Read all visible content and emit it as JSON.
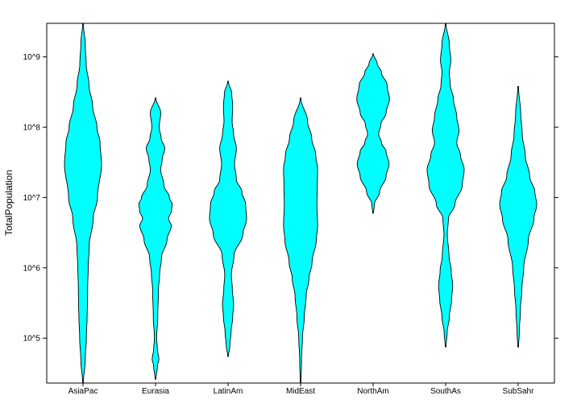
{
  "chart_data": {
    "type": "violin",
    "ylabel": "TotalPopulation",
    "yscale": "log10",
    "ylim": [
      23000.0,
      3000000000.0
    ],
    "yticks": [
      {
        "value": 100000.0,
        "label": "10^5"
      },
      {
        "value": 1000000.0,
        "label": "10^6"
      },
      {
        "value": 10000000.0,
        "label": "10^7"
      },
      {
        "value": 100000000.0,
        "label": "10^8"
      },
      {
        "value": 1000000000.0,
        "label": "10^9"
      }
    ],
    "categories": [
      "AsiaPac",
      "Eurasia",
      "LatinAm",
      "MidEast",
      "NorthAm",
      "SouthAs",
      "SubSahr"
    ],
    "colors": {
      "fill": "#00ffff",
      "stroke": "#000000"
    },
    "series": [
      {
        "category": "AsiaPac",
        "min": 23000.0,
        "max": 3000000000.0,
        "density": [
          [
            23000.0,
            0.02
          ],
          [
            50000.0,
            0.12
          ],
          [
            100000.0,
            0.18
          ],
          [
            200000.0,
            0.22
          ],
          [
            300000.0,
            0.24
          ],
          [
            500000.0,
            0.25
          ],
          [
            1000000.0,
            0.28
          ],
          [
            2000000.0,
            0.33
          ],
          [
            5000000.0,
            0.55
          ],
          [
            10000000.0,
            0.78
          ],
          [
            30000000.0,
            1.0
          ],
          [
            60000000.0,
            0.92
          ],
          [
            100000000.0,
            0.75
          ],
          [
            200000000.0,
            0.52
          ],
          [
            400000000.0,
            0.32
          ],
          [
            800000000.0,
            0.17
          ],
          [
            1500000000.0,
            0.12
          ],
          [
            3000000000.0,
            0.02
          ]
        ]
      },
      {
        "category": "Eurasia",
        "min": 26000.0,
        "max": 260000000.0,
        "density": [
          [
            26000.0,
            0.02
          ],
          [
            40000.0,
            0.1
          ],
          [
            50000.0,
            0.18
          ],
          [
            70000.0,
            0.1
          ],
          [
            100000.0,
            0.06
          ],
          [
            200000.0,
            0.12
          ],
          [
            500000.0,
            0.16
          ],
          [
            800000.0,
            0.22
          ],
          [
            1400000.0,
            0.32
          ],
          [
            2500000.0,
            0.62
          ],
          [
            4000000.0,
            0.85
          ],
          [
            5000000.0,
            0.7
          ],
          [
            6500000.0,
            0.86
          ],
          [
            8000000.0,
            0.9
          ],
          [
            10000000.0,
            0.75
          ],
          [
            15000000.0,
            0.45
          ],
          [
            25000000.0,
            0.28
          ],
          [
            35000000.0,
            0.36
          ],
          [
            50000000.0,
            0.5
          ],
          [
            70000000.0,
            0.3
          ],
          [
            100000000.0,
            0.2
          ],
          [
            160000000.0,
            0.28
          ],
          [
            260000000.0,
            0.02
          ]
        ]
      },
      {
        "category": "LatinAm",
        "min": 55000.0,
        "max": 450000000.0,
        "density": [
          [
            55000.0,
            0.02
          ],
          [
            80000.0,
            0.1
          ],
          [
            120000.0,
            0.16
          ],
          [
            200000.0,
            0.25
          ],
          [
            300000.0,
            0.3
          ],
          [
            500000.0,
            0.23
          ],
          [
            800000.0,
            0.18
          ],
          [
            1500000.0,
            0.32
          ],
          [
            3000000.0,
            0.8
          ],
          [
            5000000.0,
            1.0
          ],
          [
            8000000.0,
            0.95
          ],
          [
            12000000.0,
            0.75
          ],
          [
            18000000.0,
            0.45
          ],
          [
            30000000.0,
            0.35
          ],
          [
            50000000.0,
            0.45
          ],
          [
            80000000.0,
            0.3
          ],
          [
            120000000.0,
            0.22
          ],
          [
            200000000.0,
            0.25
          ],
          [
            300000000.0,
            0.2
          ],
          [
            450000000.0,
            0.02
          ]
        ]
      },
      {
        "category": "MidEast",
        "min": 23000.0,
        "max": 260000000.0,
        "density": [
          [
            23000.0,
            0.02
          ],
          [
            50000.0,
            0.05
          ],
          [
            100000.0,
            0.1
          ],
          [
            200000.0,
            0.2
          ],
          [
            400000.0,
            0.3
          ],
          [
            700000.0,
            0.45
          ],
          [
            1200000.0,
            0.62
          ],
          [
            2500000.0,
            0.85
          ],
          [
            4000000.0,
            0.92
          ],
          [
            8000000.0,
            0.88
          ],
          [
            15000000.0,
            0.9
          ],
          [
            25000000.0,
            0.92
          ],
          [
            40000000.0,
            0.82
          ],
          [
            70000000.0,
            0.6
          ],
          [
            120000000.0,
            0.38
          ],
          [
            260000000.0,
            0.02
          ]
        ]
      },
      {
        "category": "NorthAm",
        "min": 6000000.0,
        "max": 1100000000.0,
        "density": [
          [
            6000000.0,
            0.02
          ],
          [
            8000000.0,
            0.07
          ],
          [
            12000000.0,
            0.35
          ],
          [
            20000000.0,
            0.7
          ],
          [
            30000000.0,
            0.86
          ],
          [
            45000000.0,
            0.7
          ],
          [
            60000000.0,
            0.45
          ],
          [
            80000000.0,
            0.3
          ],
          [
            110000000.0,
            0.42
          ],
          [
            160000000.0,
            0.7
          ],
          [
            250000000.0,
            0.88
          ],
          [
            400000000.0,
            0.75
          ],
          [
            600000000.0,
            0.45
          ],
          [
            800000000.0,
            0.22
          ],
          [
            1100000000.0,
            0.02
          ]
        ]
      },
      {
        "category": "SouthAs",
        "min": 75000.0,
        "max": 3000000000.0,
        "density": [
          [
            75000.0,
            0.02
          ],
          [
            120000.0,
            0.08
          ],
          [
            200000.0,
            0.2
          ],
          [
            350000.0,
            0.32
          ],
          [
            550000.0,
            0.38
          ],
          [
            900000.0,
            0.3
          ],
          [
            1500000.0,
            0.18
          ],
          [
            3000000.0,
            0.09
          ],
          [
            5000000.0,
            0.15
          ],
          [
            8000000.0,
            0.5
          ],
          [
            15000000.0,
            0.9
          ],
          [
            25000000.0,
            1.0
          ],
          [
            40000000.0,
            0.8
          ],
          [
            60000000.0,
            0.6
          ],
          [
            90000000.0,
            0.72
          ],
          [
            140000000.0,
            0.6
          ],
          [
            250000000.0,
            0.42
          ],
          [
            400000000.0,
            0.25
          ],
          [
            600000000.0,
            0.2
          ],
          [
            900000000.0,
            0.28
          ],
          [
            1500000000.0,
            0.2
          ],
          [
            3000000000.0,
            0.02
          ]
        ]
      },
      {
        "category": "SubSahr",
        "min": 75000.0,
        "max": 380000000.0,
        "density": [
          [
            75000.0,
            0.02
          ],
          [
            120000.0,
            0.06
          ],
          [
            250000.0,
            0.12
          ],
          [
            500000.0,
            0.2
          ],
          [
            1000000.0,
            0.3
          ],
          [
            2500000.0,
            0.55
          ],
          [
            5000000.0,
            0.85
          ],
          [
            8000000.0,
            1.0
          ],
          [
            12000000.0,
            0.9
          ],
          [
            20000000.0,
            0.62
          ],
          [
            40000000.0,
            0.38
          ],
          [
            80000000.0,
            0.22
          ],
          [
            150000000.0,
            0.14
          ],
          [
            380000000.0,
            0.02
          ]
        ]
      }
    ]
  }
}
